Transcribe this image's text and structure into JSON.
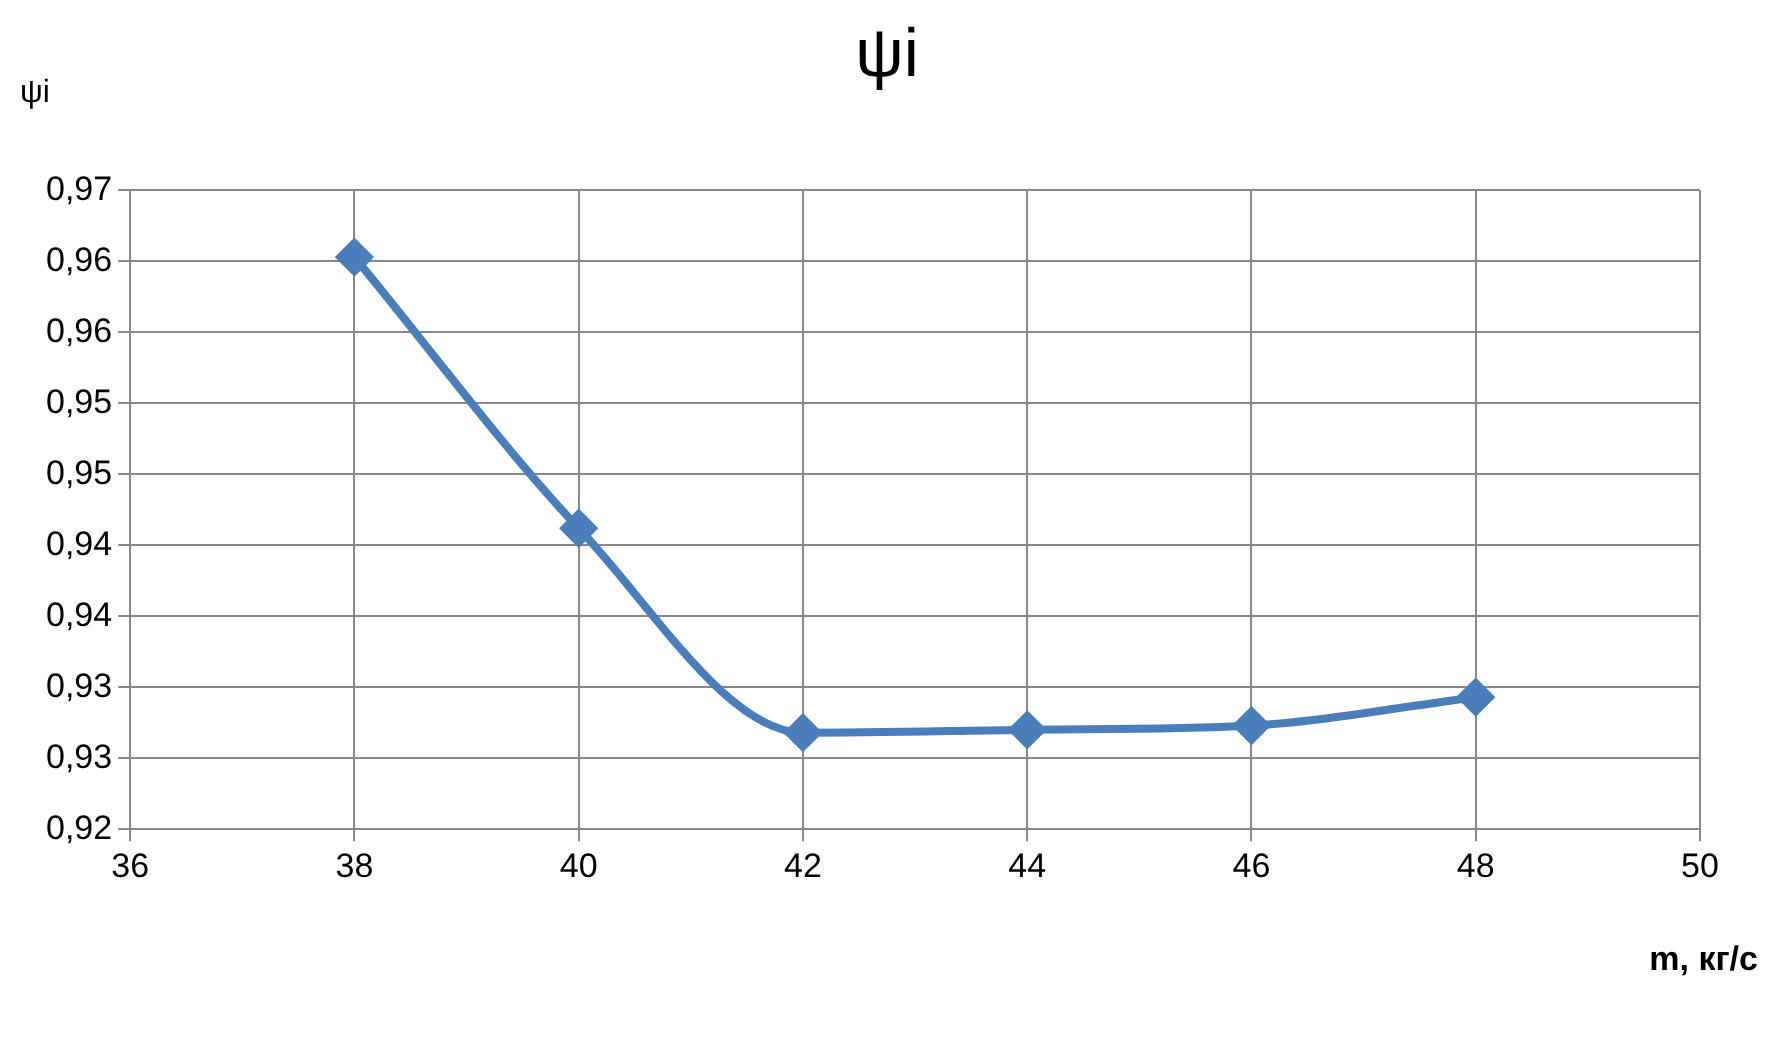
{
  "chart_data": {
    "type": "line",
    "title": "ψi",
    "ylabel": "ψi",
    "xlabel": "m, кг/с",
    "x": [
      38,
      40,
      42,
      44,
      46,
      48
    ],
    "series": [
      {
        "color": "#4a7ebb",
        "values": [
          0.9603,
          0.9412,
          0.9268,
          0.927,
          0.9273,
          0.9293
        ]
      }
    ],
    "xlim": [
      36,
      50
    ],
    "xticks": [
      36,
      38,
      40,
      42,
      44,
      46,
      48,
      50
    ],
    "ylim": [
      0.92,
      0.965
    ],
    "yticks": [
      {
        "value": 0.92,
        "label": "0,92"
      },
      {
        "value": 0.925,
        "label": "0,93"
      },
      {
        "value": 0.93,
        "label": "0,93"
      },
      {
        "value": 0.935,
        "label": "0,94"
      },
      {
        "value": 0.94,
        "label": "0,94"
      },
      {
        "value": 0.945,
        "label": "0,95"
      },
      {
        "value": 0.95,
        "label": "0,95"
      },
      {
        "value": 0.955,
        "label": "0,96"
      },
      {
        "value": 0.96,
        "label": "0,96"
      },
      {
        "value": 0.965,
        "label": "0,97"
      }
    ],
    "grid": true,
    "legend": false,
    "marker": "diamond",
    "line_style": "solid"
  }
}
